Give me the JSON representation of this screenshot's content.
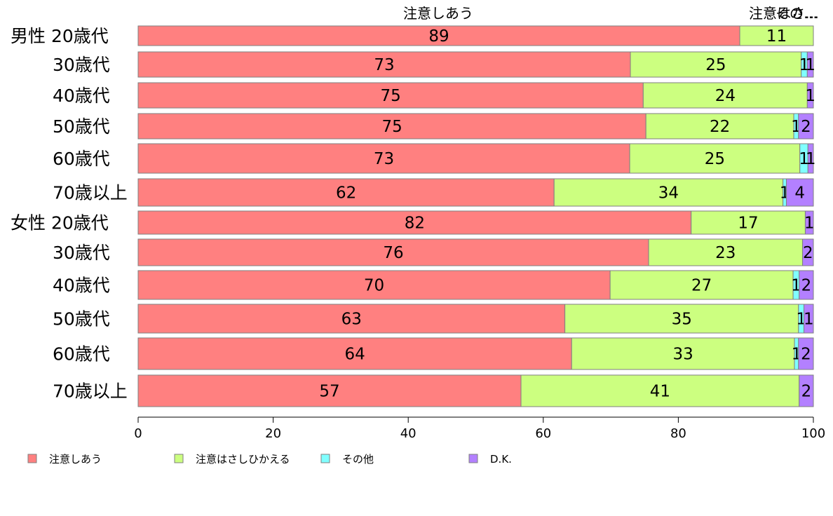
{
  "chart_data": {
    "type": "bar",
    "orientation": "horizontal",
    "stacked": true,
    "title": "",
    "xlabel": "",
    "ylabel": "",
    "xlim": [
      0,
      100
    ],
    "xticks": [
      "0",
      "20",
      "40",
      "60",
      "80",
      "100"
    ],
    "grid": false,
    "legend_position": "bottom-left",
    "top_labels": [
      "注意しあう",
      "注意はさ…",
      "その…"
    ],
    "categories": [
      "男性 20歳代",
      "30歳代",
      "40歳代",
      "50歳代",
      "60歳代",
      "70歳以上",
      "女性 20歳代",
      "30歳代",
      "40歳代",
      "50歳代",
      "60歳代",
      "70歳以上"
    ],
    "series": [
      {
        "name": "注意しあう",
        "color": "#ff8080",
        "values": [
          89.1,
          72.9,
          74.8,
          75.2,
          72.8,
          61.6,
          81.9,
          75.6,
          69.9,
          63.2,
          64.2,
          56.7
        ]
      },
      {
        "name": "注意はさしひかえる",
        "color": "#ccff80",
        "values": [
          10.9,
          25.3,
          24.3,
          21.9,
          25.2,
          33.9,
          16.9,
          22.8,
          27.1,
          34.6,
          33.0,
          41.2
        ]
      },
      {
        "name": "その他",
        "color": "#80ffff",
        "values": [
          0,
          0.9,
          0,
          0.7,
          1.2,
          0.5,
          0,
          0,
          0.9,
          0.8,
          0.6,
          0
        ]
      },
      {
        "name": "D.K.",
        "color": "#b380ff",
        "values": [
          0,
          0.9,
          0.9,
          2.2,
          0.8,
          4.0,
          1.2,
          1.6,
          2.1,
          1.4,
          2.2,
          2.1
        ]
      }
    ],
    "value_labels": [
      [
        "89",
        "11",
        "",
        ""
      ],
      [
        "73",
        "25",
        "1",
        "1"
      ],
      [
        "75",
        "24",
        "",
        "1"
      ],
      [
        "75",
        "22",
        "1",
        "2"
      ],
      [
        "73",
        "25",
        "1",
        "1"
      ],
      [
        "62",
        "34",
        "1",
        "4"
      ],
      [
        "82",
        "17",
        "",
        "1"
      ],
      [
        "76",
        "23",
        "",
        "2"
      ],
      [
        "70",
        "27",
        "1",
        "2"
      ],
      [
        "63",
        "35",
        "1",
        "1"
      ],
      [
        "64",
        "33",
        "1",
        "2"
      ],
      [
        "57",
        "41",
        "",
        "2"
      ]
    ]
  }
}
